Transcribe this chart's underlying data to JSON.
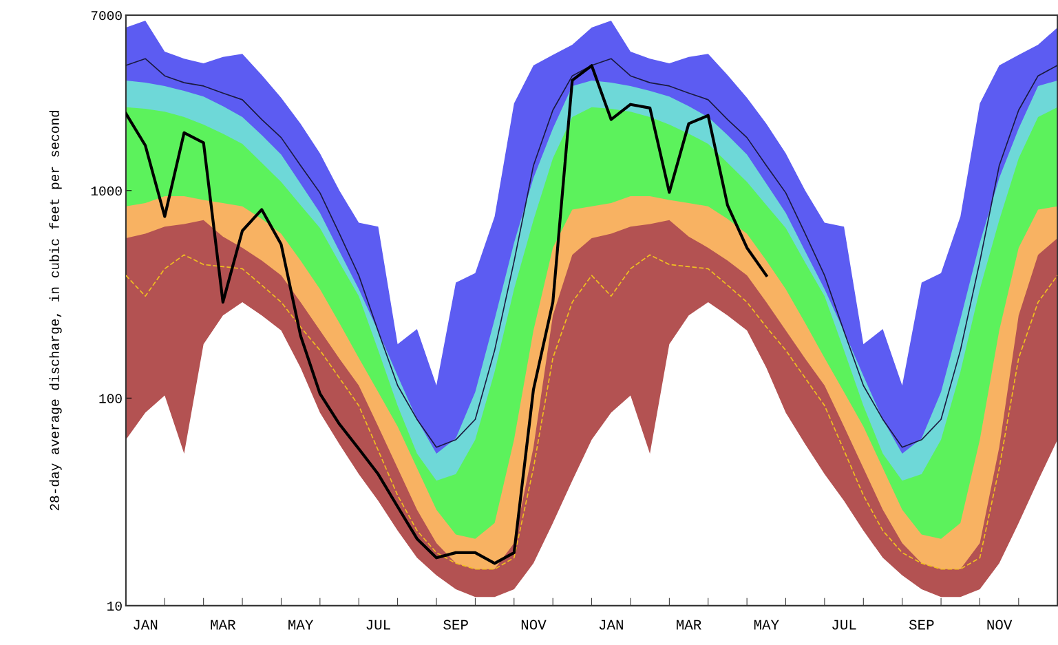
{
  "chart_data": {
    "type": "area",
    "ylabel": "28-day average discharge, in cubic feet per second",
    "log": "y",
    "ylim": [
      10,
      7000
    ],
    "yticks": [
      10,
      100,
      1000,
      7000
    ],
    "grid": false,
    "legend": false,
    "categories": [
      null,
      "JAN",
      null,
      null,
      null,
      "MAR",
      null,
      null,
      null,
      "MAY",
      null,
      null,
      null,
      "JUL",
      null,
      null,
      null,
      "SEP",
      null,
      null,
      null,
      "NOV",
      null,
      null,
      null,
      "JAN",
      null,
      null,
      null,
      "MAR",
      null,
      null,
      null,
      "MAY",
      null,
      null,
      null,
      "JUL",
      null,
      null,
      null,
      "SEP",
      null,
      null,
      null,
      "NOV",
      null,
      null,
      null
    ],
    "series": [
      {
        "color": "#5c5cf2",
        "values": [
          6100,
          6580,
          4670,
          4320,
          4100,
          4400,
          4560,
          3600,
          2800,
          2100,
          1510,
          1000,
          700,
          670,
          182,
          215,
          115,
          360,
          400,
          750,
          2630,
          4010,
          4500,
          5040,
          6100,
          6580,
          4670,
          4320,
          4100,
          4400,
          4560,
          3600,
          2800,
          2100,
          1510,
          1000,
          700,
          670,
          182,
          215,
          115,
          360,
          400,
          750,
          2630,
          4010,
          4500,
          5040,
          6100
        ]
      },
      {
        "color": "#6ed8d8",
        "values": [
          3390,
          3310,
          3190,
          3020,
          2840,
          2550,
          2260,
          1850,
          1490,
          1080,
          780,
          510,
          335,
          210,
          128,
          79,
          54,
          64,
          107,
          240,
          560,
          1150,
          1990,
          3190,
          3390,
          3310,
          3190,
          3020,
          2840,
          2550,
          2260,
          1850,
          1490,
          1080,
          780,
          510,
          335,
          210,
          128,
          79,
          54,
          64,
          107,
          240,
          560,
          1150,
          1990,
          3190,
          3390
        ]
      },
      {
        "color": "#5cf25c",
        "values": [
          2520,
          2480,
          2400,
          2260,
          2080,
          1880,
          1680,
          1360,
          1100,
          850,
          660,
          450,
          310,
          170,
          92,
          54,
          40,
          43,
          63,
          134,
          335,
          720,
          1430,
          2260,
          2520,
          2480,
          2400,
          2260,
          2080,
          1880,
          1680,
          1360,
          1100,
          850,
          660,
          450,
          310,
          170,
          92,
          54,
          40,
          43,
          63,
          134,
          335,
          720,
          1430,
          2260,
          2520
        ]
      },
      {
        "color": "#f8b262",
        "values": [
          840,
          870,
          940,
          940,
          900,
          870,
          840,
          730,
          620,
          460,
          335,
          230,
          156,
          107,
          73,
          46,
          29,
          22,
          21,
          25,
          63,
          212,
          530,
          810,
          840,
          870,
          940,
          940,
          900,
          870,
          840,
          730,
          620,
          460,
          335,
          230,
          156,
          107,
          73,
          46,
          29,
          22,
          21,
          25,
          63,
          212,
          530,
          810,
          840
        ]
      },
      {
        "color": "#b35252",
        "values": [
          590,
          620,
          670,
          690,
          720,
          600,
          530,
          460,
          390,
          290,
          212,
          155,
          115,
          73,
          46,
          29,
          20,
          16,
          15,
          15,
          20,
          58,
          250,
          490,
          590,
          620,
          670,
          690,
          720,
          600,
          530,
          460,
          390,
          290,
          212,
          155,
          115,
          73,
          46,
          29,
          20,
          16,
          15,
          15,
          20,
          58,
          250,
          490,
          590
        ]
      },
      {
        "color": "#ffffff",
        "values": [
          63,
          85,
          103,
          54,
          182,
          250,
          290,
          250,
          212,
          140,
          85,
          60,
          43,
          32,
          23,
          17,
          14,
          12,
          11,
          11,
          12,
          16,
          25,
          40,
          63,
          85,
          103,
          54,
          182,
          250,
          290,
          250,
          212,
          140,
          85,
          60,
          43,
          32,
          23,
          17,
          14,
          12,
          11,
          11,
          12,
          16,
          25,
          40,
          63
        ]
      },
      {
        "type": "line",
        "color": "#1a1a40",
        "line_style": "solid",
        "values": [
          4010,
          4320,
          3570,
          3310,
          3190,
          2950,
          2740,
          2200,
          1800,
          1320,
          975,
          620,
          390,
          210,
          115,
          79,
          58,
          63,
          79,
          170,
          455,
          1320,
          2440,
          3570,
          4010,
          4320,
          3570,
          3310,
          3190,
          2950,
          2740,
          2200,
          1800,
          1320,
          975,
          620,
          390,
          210,
          115,
          79,
          58,
          63,
          79,
          170,
          455,
          1320,
          2440,
          3570,
          4010
        ]
      },
      {
        "type": "line",
        "color": "#f0c020",
        "line_style": "dashed",
        "values": [
          390,
          310,
          420,
          490,
          440,
          430,
          420,
          350,
          290,
          220,
          170,
          125,
          92,
          56,
          34,
          23,
          18,
          16,
          15,
          15,
          17,
          46,
          156,
          290,
          390,
          310,
          420,
          490,
          440,
          430,
          420,
          350,
          290,
          220,
          170,
          125,
          92,
          56,
          34,
          23,
          18,
          16,
          15,
          15,
          17,
          46,
          156,
          290,
          390
        ]
      },
      {
        "type": "line",
        "color": "#000000",
        "line_style": "solid",
        "values": [
          2350,
          1650,
          750,
          1900,
          1700,
          290,
          640,
          810,
          550,
          200,
          105,
          75,
          57,
          43,
          30,
          21,
          17,
          18,
          18,
          16,
          18,
          110,
          290,
          3400,
          4000,
          2200,
          2600,
          2500,
          980,
          2100,
          2300,
          850,
          530,
          390,
          null,
          null,
          null,
          null,
          null,
          null,
          null,
          null,
          null,
          null,
          null,
          null,
          null,
          null,
          null
        ]
      }
    ]
  }
}
